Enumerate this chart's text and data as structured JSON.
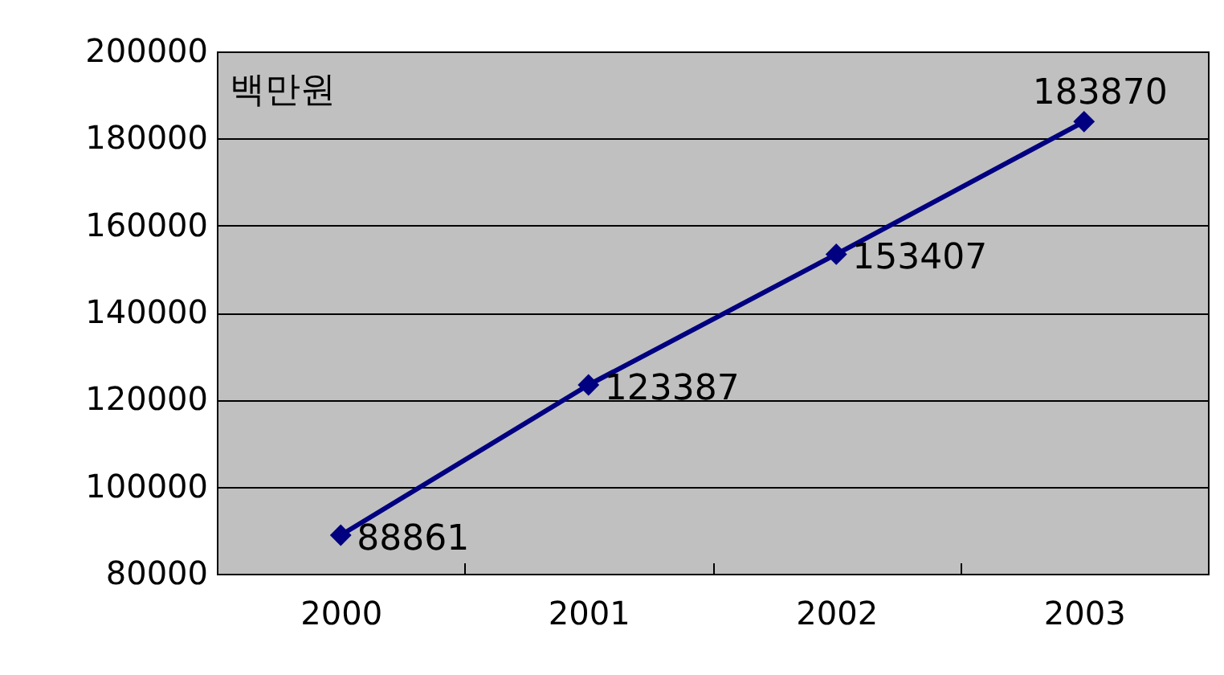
{
  "chart_data": {
    "type": "line",
    "ylabel": "백만원",
    "categories": [
      "2000",
      "2001",
      "2002",
      "2003"
    ],
    "series": [
      {
        "color": "#000080",
        "values": [
          88861,
          123387,
          153407,
          183870
        ]
      }
    ],
    "ylim": [
      80000,
      200000
    ],
    "yticks": [
      80000,
      100000,
      120000,
      140000,
      160000,
      180000,
      200000
    ],
    "grid": "y",
    "marker": "diamond",
    "line_style": "solid",
    "data_labels": true
  }
}
